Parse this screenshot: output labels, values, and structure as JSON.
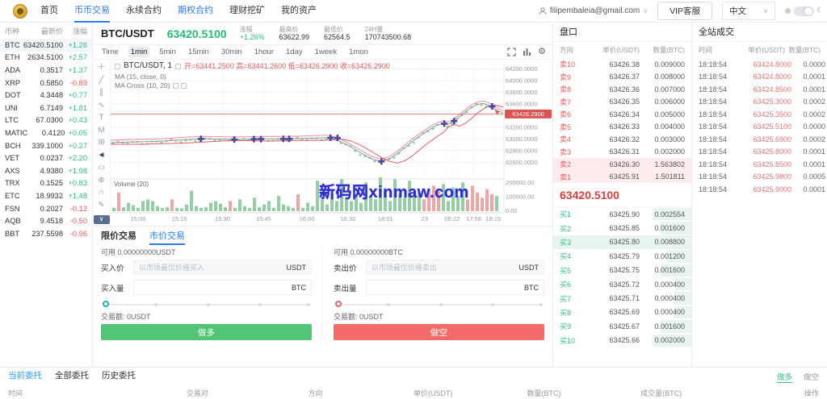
{
  "topbar": {
    "nav": [
      {
        "label": "首页",
        "style": "normal"
      },
      {
        "label": "币币交易",
        "style": "active"
      },
      {
        "label": "永续合约",
        "style": "normal"
      },
      {
        "label": "期权合约",
        "style": "blue"
      },
      {
        "label": "理财挖矿",
        "style": "normal"
      },
      {
        "label": "我的资产",
        "style": "normal"
      }
    ],
    "user_email": "filipembaleia@gmail.com",
    "vip_button": "VIP客服",
    "language": "中文"
  },
  "watch_list": {
    "headers": [
      "币种",
      "最新价",
      "涨幅"
    ],
    "coins": [
      {
        "symbol": "BTC",
        "price": "63420.5100",
        "change": "+1.26",
        "dir": "up",
        "selected": true
      },
      {
        "symbol": "ETH",
        "price": "2634.5100",
        "change": "+2.57",
        "dir": "up"
      },
      {
        "symbol": "ADA",
        "price": "0.3517",
        "change": "+1.37",
        "dir": "up"
      },
      {
        "symbol": "XRP",
        "price": "0.5850",
        "change": "-0.89",
        "dir": "down"
      },
      {
        "symbol": "DOT",
        "price": "4.3448",
        "change": "+0.77",
        "dir": "up"
      },
      {
        "symbol": "UNI",
        "price": "6.7149",
        "change": "+1.81",
        "dir": "up"
      },
      {
        "symbol": "LTC",
        "price": "67.0300",
        "change": "+0.43",
        "dir": "up"
      },
      {
        "symbol": "MATIC",
        "price": "0.4120",
        "change": "+0.05",
        "dir": "up"
      },
      {
        "symbol": "BCH",
        "price": "339.1000",
        "change": "+0.27",
        "dir": "up"
      },
      {
        "symbol": "VET",
        "price": "0.0237",
        "change": "+2.20",
        "dir": "up"
      },
      {
        "symbol": "AXS",
        "price": "4.9380",
        "change": "+1.98",
        "dir": "up"
      },
      {
        "symbol": "TRX",
        "price": "0.1525",
        "change": "+0.83",
        "dir": "up"
      },
      {
        "symbol": "ETC",
        "price": "18.9932",
        "change": "+1.48",
        "dir": "up"
      },
      {
        "symbol": "FSN",
        "price": "0.2027",
        "change": "-0.12",
        "dir": "down"
      },
      {
        "symbol": "AQB",
        "price": "9.4518",
        "change": "-0.50",
        "dir": "down"
      },
      {
        "symbol": "BBT",
        "price": "237.5598",
        "change": "-0.96",
        "dir": "down"
      }
    ]
  },
  "market_header": {
    "pair": "BTC/USDT",
    "price": "63420.5100",
    "stats": [
      {
        "label": "涨幅",
        "value": "+1.26%",
        "color": "green"
      },
      {
        "label": "最高价",
        "value": "63622.99",
        "color": "dark"
      },
      {
        "label": "最低价",
        "value": "62564.5",
        "color": "dark"
      },
      {
        "label": "24H量",
        "value": "170743500.68",
        "color": "dark"
      }
    ]
  },
  "timeframes": {
    "items": [
      "Time",
      "1min",
      "5min",
      "15min",
      "30min",
      "1hour",
      "1day",
      "1week",
      "1mon"
    ],
    "active": "1min"
  },
  "chart": {
    "legend_pair": "BTC/USDT, 1",
    "ohlc": "开=63441.2500  高=63441.2600  低=63426.2900  收=63426.2900",
    "ma1": "MA (15, close, 0)",
    "ma2": "MA Cross (10, 20)",
    "volume_label": "Volume (20)",
    "watermark": "新码网xinmaw.com",
    "last_price": "63426.2900",
    "last_price_value": 63426.29,
    "ylim": [
      62480,
      64300
    ],
    "y_ticks": [
      {
        "v": 64200,
        "label": "64200.0000"
      },
      {
        "v": 64000,
        "label": "64000.0000"
      },
      {
        "v": 63800,
        "label": "63800.0000"
      },
      {
        "v": 63600,
        "label": "63600.0000"
      },
      {
        "v": 63400,
        "label": ""
      },
      {
        "v": 63200,
        "label": "63200.0000"
      },
      {
        "v": 63000,
        "label": "63000.0000"
      },
      {
        "v": 62800,
        "label": "62800.0000"
      },
      {
        "v": 62600,
        "label": "62600.0000"
      }
    ],
    "vol_ticks": [
      "200000.00",
      "100000.00",
      "0.00"
    ],
    "x_ticks": [
      {
        "f": 0.07,
        "label": "15:00"
      },
      {
        "f": 0.175,
        "label": "15:15"
      },
      {
        "f": 0.285,
        "label": "15:30"
      },
      {
        "f": 0.39,
        "label": "15:45"
      },
      {
        "f": 0.5,
        "label": "16:00"
      },
      {
        "f": 0.605,
        "label": "16:30"
      },
      {
        "f": 0.7,
        "label": "18:01"
      },
      {
        "f": 0.8,
        "label": "23"
      },
      {
        "f": 0.87,
        "label": "06:22"
      },
      {
        "f": 0.925,
        "label": "17:58"
      },
      {
        "f": 0.975,
        "label": "18:15"
      }
    ],
    "series": [
      [
        0,
        62935
      ],
      [
        0.04,
        62945
      ],
      [
        0.08,
        62950
      ],
      [
        0.12,
        62960
      ],
      [
        0.16,
        62975
      ],
      [
        0.2,
        62990
      ],
      [
        0.24,
        63000
      ],
      [
        0.28,
        62995
      ],
      [
        0.32,
        62990
      ],
      [
        0.36,
        62995
      ],
      [
        0.4,
        63000
      ],
      [
        0.44,
        63000
      ],
      [
        0.48,
        63005
      ],
      [
        0.52,
        63015
      ],
      [
        0.55,
        63020
      ],
      [
        0.57,
        62995
      ],
      [
        0.59,
        62940
      ],
      [
        0.61,
        62870
      ],
      [
        0.63,
        62790
      ],
      [
        0.65,
        62710
      ],
      [
        0.67,
        62645
      ],
      [
        0.69,
        62615
      ],
      [
        0.71,
        62655
      ],
      [
        0.73,
        62745
      ],
      [
        0.75,
        62855
      ],
      [
        0.77,
        62965
      ],
      [
        0.79,
        63060
      ],
      [
        0.81,
        63150
      ],
      [
        0.83,
        63230
      ],
      [
        0.85,
        63270
      ],
      [
        0.86,
        63245
      ],
      [
        0.875,
        63300
      ],
      [
        0.89,
        63380
      ],
      [
        0.905,
        63470
      ],
      [
        0.92,
        63540
      ],
      [
        0.935,
        63590
      ],
      [
        0.95,
        63605
      ],
      [
        0.965,
        63570
      ],
      [
        0.98,
        63505
      ],
      [
        1,
        63435
      ]
    ],
    "markers": [
      [
        0.23,
        63000
      ],
      [
        0.315,
        62990
      ],
      [
        0.365,
        62995
      ],
      [
        0.383,
        62995
      ],
      [
        0.44,
        63000
      ],
      [
        0.455,
        63000
      ],
      [
        0.56,
        63018
      ],
      [
        0.578,
        63018
      ],
      [
        0.69,
        62615
      ],
      [
        0.85,
        63260
      ],
      [
        0.875,
        63305
      ],
      [
        0.972,
        63555
      ]
    ],
    "volume_heights": [
      10,
      55,
      12,
      25,
      18,
      10,
      30,
      35,
      30,
      15,
      10,
      12,
      35,
      10,
      8,
      20,
      60,
      15,
      10,
      12,
      25,
      30,
      22,
      12,
      30,
      10,
      35,
      15,
      10,
      40,
      12,
      20,
      30,
      10,
      45,
      20,
      15,
      10,
      50,
      10,
      25,
      15,
      90,
      35,
      20,
      55,
      30,
      95,
      40,
      30,
      50,
      25,
      85,
      45,
      35,
      100,
      60,
      30,
      95,
      50,
      40,
      90,
      45,
      55,
      35,
      65,
      75,
      60,
      80,
      30,
      70,
      45,
      85,
      35,
      75,
      55,
      40,
      65,
      50,
      45
    ],
    "volume_colors": "grggggggggggrgggggggggggrgggggggggggggrgggggggggggggggggggggggggrrrrgggggrrrrrr",
    "tools": [
      {
        "name": "crosshair-icon",
        "g": "＋"
      },
      {
        "name": "trendline-icon",
        "g": "╱"
      },
      {
        "name": "channel-icon",
        "g": "∥"
      },
      {
        "name": "brush-icon",
        "g": "∿"
      },
      {
        "name": "text-icon",
        "g": "T"
      },
      {
        "name": "pattern-icon",
        "g": "M"
      },
      {
        "name": "position-icon",
        "g": "⊞"
      },
      {
        "name": "cursor-icon",
        "g": "◄",
        "dark": true
      },
      {
        "name": "measure-icon",
        "g": "▭"
      },
      {
        "name": "zoom-icon",
        "g": "⊕"
      },
      {
        "name": "magnet-icon",
        "g": "∩"
      },
      {
        "name": "pencil-icon",
        "g": "✎"
      }
    ]
  },
  "order_book": {
    "title": "盘口",
    "headers": [
      "方向",
      "单价(USDT)",
      "数量(BTC)"
    ],
    "asks": [
      {
        "label": "卖10",
        "price": "63426.38",
        "qty": "0.009000",
        "hl": false
      },
      {
        "label": "卖9",
        "price": "63426.37",
        "qty": "0.008000",
        "hl": false
      },
      {
        "label": "卖8",
        "price": "63426.36",
        "qty": "0.007000",
        "hl": false
      },
      {
        "label": "卖7",
        "price": "63426.35",
        "qty": "0.006000",
        "hl": false
      },
      {
        "label": "卖6",
        "price": "63426.34",
        "qty": "0.005000",
        "hl": false
      },
      {
        "label": "卖5",
        "price": "63426.33",
        "qty": "0.004000",
        "hl": false
      },
      {
        "label": "卖4",
        "price": "63426.32",
        "qty": "0.003000",
        "hl": false
      },
      {
        "label": "卖3",
        "price": "63426.31",
        "qty": "0.002000",
        "hl": false
      },
      {
        "label": "卖2",
        "price": "63426.30",
        "qty": "1.563802",
        "hl": true
      },
      {
        "label": "卖1",
        "price": "63425.91",
        "qty": "1.501811",
        "hl": true
      }
    ],
    "last_price": "63420.5100",
    "bids": [
      {
        "label": "买1",
        "price": "63425.90",
        "qty": "0.002554",
        "depth": 28,
        "hl": false
      },
      {
        "label": "买2",
        "price": "63425.85",
        "qty": "0.001600",
        "depth": 22,
        "hl": false
      },
      {
        "label": "买3",
        "price": "63425.80",
        "qty": "0.008800",
        "depth": 40,
        "hl": true
      },
      {
        "label": "买4",
        "price": "63425.79",
        "qty": "0.001200",
        "depth": 18,
        "hl": false
      },
      {
        "label": "买5",
        "price": "63425.75",
        "qty": "0.001600",
        "depth": 22,
        "hl": false
      },
      {
        "label": "买6",
        "price": "63425.72",
        "qty": "0.000400",
        "depth": 12,
        "hl": false
      },
      {
        "label": "买7",
        "price": "63425.71",
        "qty": "0.000400",
        "depth": 12,
        "hl": false
      },
      {
        "label": "买8",
        "price": "63425.69",
        "qty": "0.000400",
        "depth": 12,
        "hl": false
      },
      {
        "label": "买9",
        "price": "63425.67",
        "qty": "0.001600",
        "depth": 22,
        "hl": false
      },
      {
        "label": "买10",
        "price": "63425.66",
        "qty": "0.002000",
        "depth": 28,
        "hl": false
      }
    ]
  },
  "site_trades": {
    "title": "全站成交",
    "headers": [
      "时间",
      "单价(USDT)",
      "数量(BTC)"
    ],
    "rows": [
      {
        "time": "18:18:54",
        "price": "63424.8000",
        "qty": "0.0000"
      },
      {
        "time": "18:18:54",
        "price": "63424.8000",
        "qty": "0.0001"
      },
      {
        "time": "18:18:54",
        "price": "63424.8500",
        "qty": "0.0001"
      },
      {
        "time": "18:18:54",
        "price": "63425.3000",
        "qty": "0.0002"
      },
      {
        "time": "18:18:54",
        "price": "63425.3500",
        "qty": "0.0002"
      },
      {
        "time": "18:18:54",
        "price": "63425.5100",
        "qty": "0.0000"
      },
      {
        "time": "18:18:54",
        "price": "63425.6900",
        "qty": "0.0002"
      },
      {
        "time": "18:18:54",
        "price": "63425.8000",
        "qty": "0.0001"
      },
      {
        "time": "18:18:54",
        "price": "63425.8500",
        "qty": "0.0001"
      },
      {
        "time": "18:18:54",
        "price": "63425.9800",
        "qty": "0.0005"
      },
      {
        "time": "18:18:54",
        "price": "63425.9000",
        "qty": "0.0001"
      }
    ]
  },
  "trade_form": {
    "tabs": [
      {
        "label": "限价交易",
        "active": false
      },
      {
        "label": "市价交易",
        "active": true
      }
    ],
    "buy": {
      "available": "可用 0.00000000USDT",
      "price_label": "买入价",
      "price_placeholder": "以市场最优价格买入",
      "price_unit": "USDT",
      "amount_label": "买入量",
      "amount_unit": "BTC",
      "total": "交易额: 0USDT",
      "button": "做多"
    },
    "sell": {
      "available": "可用 0.00000000BTC",
      "price_label": "卖出价",
      "price_placeholder": "以市场最优价格卖出",
      "price_unit": "USDT",
      "amount_label": "卖出量",
      "amount_unit": "BTC",
      "total": "交易额: 0USDT",
      "button": "做空"
    }
  },
  "open_orders": {
    "tabs": [
      {
        "label": "当前委托",
        "active": true
      },
      {
        "label": "全部委托",
        "active": false
      },
      {
        "label": "历史委托",
        "active": false
      }
    ],
    "side_filters": [
      {
        "label": "做多",
        "active": true
      },
      {
        "label": "做空",
        "active": false
      }
    ],
    "headers": [
      "时间",
      "交易对",
      "方向",
      "单价(USDT)",
      "数量(BTC)",
      "成交量(BTC)",
      "操作"
    ]
  },
  "colors": {
    "up": "#2ebd85",
    "down": "#e35b5b",
    "accent": "#2f7cf6",
    "badge": "#d9534f"
  }
}
